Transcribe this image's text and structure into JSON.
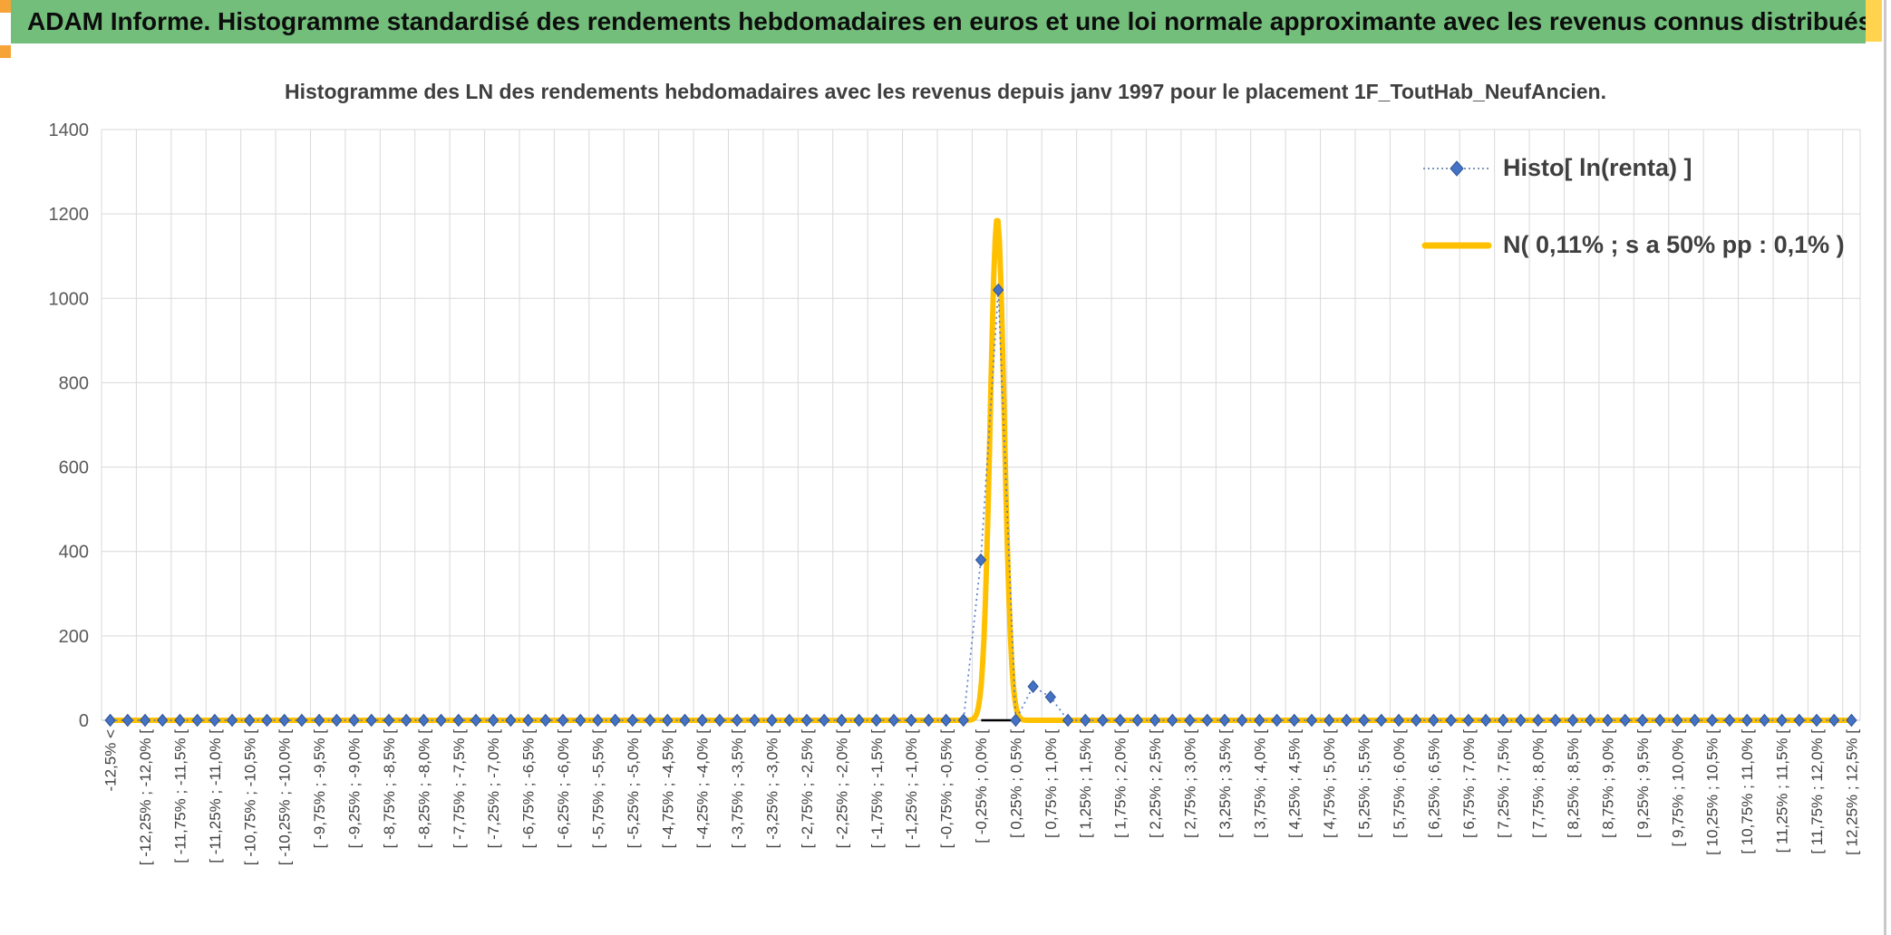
{
  "header": {
    "title": "ADAM Informe. Histogramme standardisé des rendements hebdomadaires en euros et une loi normale approximante avec les revenus connus distribués",
    "bg_color": "#72BE7A",
    "accent_orange": "#F6A437",
    "accent_yellow": "#FFD34D"
  },
  "chart_data": {
    "type": "combo",
    "title": "Histogramme des LN des rendements hebdomadaires avec les revenus depuis janv 1997 pour le placement 1F_ToutHab_NeufAncien.",
    "xlabel": "",
    "ylabel": "",
    "ylim": [
      0,
      1400
    ],
    "ytick_step": 200,
    "ytick_labels": [
      "0",
      "200",
      "400",
      "600",
      "800",
      "1000",
      "1200",
      "1400"
    ],
    "grid": true,
    "grid_color": "#D9D9D9",
    "axis_text_color": "#595959",
    "bins": {
      "count": 101,
      "first_bin_catchall": true,
      "range_pct": [
        -12.5,
        12.5
      ],
      "bin_width_pct": 0.25,
      "labels_every_n_bins": 2
    },
    "xtick_labels": [
      "-12,5% <",
      "[ -12,25% ; -12,0% [",
      "[ -11,75% ; -11,5% [",
      "[ -11,25% ; -11,0% [",
      "[ -10,75% ; -10,5% [",
      "[ -10,25% ; -10,0% [",
      "[ -9,75% ; -9,5% [",
      "[ -9,25% ; -9,0% [",
      "[ -8,75% ; -8,5% [",
      "[ -8,25% ; -8,0% [",
      "[ -7,75% ; -7,5% [",
      "[ -7,25% ; -7,0% [",
      "[ -6,75% ; -6,5% [",
      "[ -6,25% ; -6,0% [",
      "[ -5,75% ; -5,5% [",
      "[ -5,25% ; -5,0% [",
      "[ -4,75% ; -4,5% [",
      "[ -4,25% ; -4,0% [",
      "[ -3,75% ; -3,5% [",
      "[ -3,25% ; -3,0% [",
      "[ -2,75% ; -2,5% [",
      "[ -2,25% ; -2,0% [",
      "[ -1,75% ; -1,5% [",
      "[ -1,25% ; -1,0% [",
      "[ -0,75% ; -0,5% [",
      "[ -0,25% ; 0,0% [",
      "[ 0,25% ; 0,5% [",
      "[ 0,75% ; 1,0% [",
      "[ 1,25% ; 1,5% [",
      "[ 1,75% ; 2,0% [",
      "[ 2,25% ; 2,5% [",
      "[ 2,75% ; 3,0% [",
      "[ 3,25% ; 3,5% [",
      "[ 3,75% ; 4,0% [",
      "[ 4,25% ; 4,5% [",
      "[ 4,75% ; 5,0% [",
      "[ 5,25% ; 5,5% [",
      "[ 5,75% ; 6,0% [",
      "[ 6,25% ; 6,5% [",
      "[ 6,75% ; 7,0% [",
      "[ 7,25% ; 7,5% [",
      "[ 7,75% ; 8,0% [",
      "[ 8,25% ; 8,5% [",
      "[ 8,75% ; 9,0% [",
      "[ 9,25% ; 9,5% [",
      "[ 9,75% ; 10,0% [",
      "[ 10,25% ; 10,5% [",
      "[ 10,75% ; 11,0% [",
      "[ 11,25% ; 11,5% [",
      "[ 11,75% ; 12,0% [",
      "[ 12,25% ; 12,5% ["
    ],
    "series": [
      {
        "name": "Histo[ ln(renta) ]",
        "type": "scatter",
        "marker": "diamond",
        "color": "#4472C4",
        "marker_border_color": "#2e5395",
        "line_style": "dotted",
        "default_value": 0,
        "nonzero": {
          "50": 380,
          "51": 1020,
          "53": 80,
          "54": 55
        }
      },
      {
        "name": "N( 0,11% ; s a 50% pp : 0,1% )",
        "type": "line",
        "shape": "gaussian",
        "color": "#FFC000",
        "mean_pct": 0.11,
        "sd_pct": 0.1,
        "peak": 1190
      }
    ],
    "legend": {
      "position": "top-right",
      "entries": [
        "Histo[ ln(renta) ]",
        "N( 0,11% ; s a 50% pp : 0,1% )"
      ]
    },
    "zero_axis_segment": {
      "from_pct": -0.12,
      "to_pct": 0.55,
      "color": "#000000"
    }
  }
}
